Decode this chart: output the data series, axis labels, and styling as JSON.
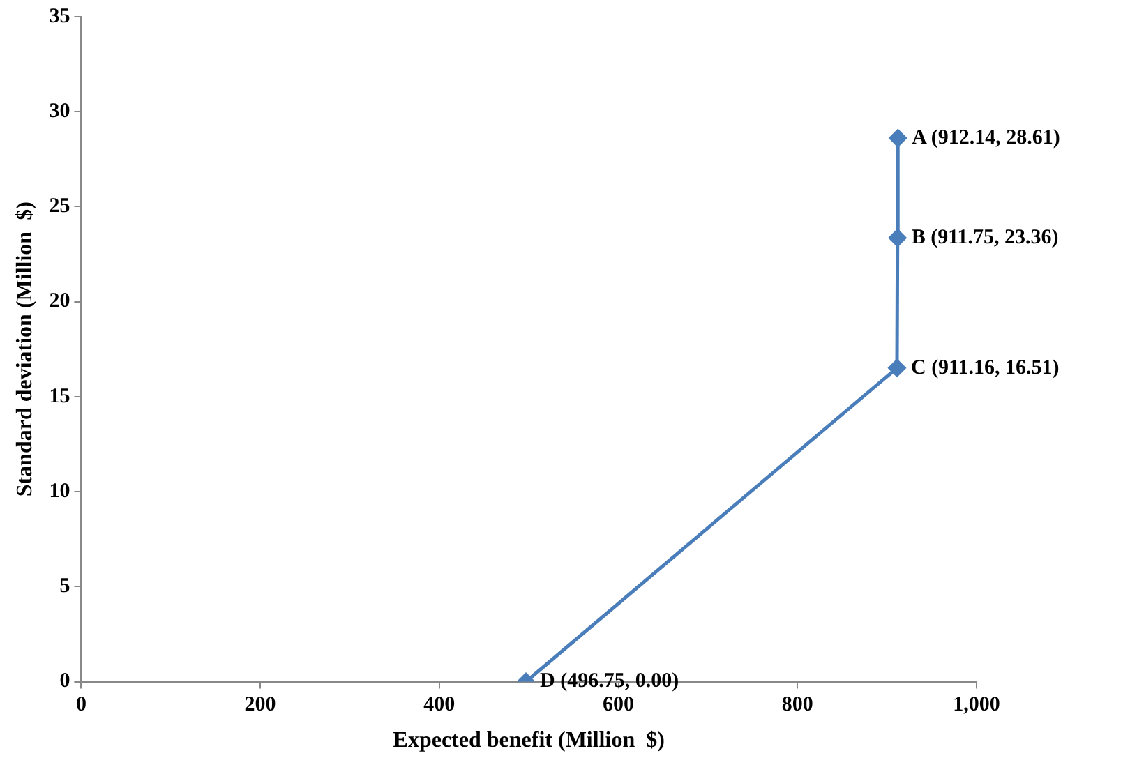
{
  "chart_data": {
    "type": "line",
    "xlabel": "Expected benefit (Million  $)",
    "ylabel": "Standard deviation (Million  $)",
    "x": [
      496.75,
      911.16,
      911.75,
      912.14
    ],
    "values": [
      0,
      16.51,
      23.36,
      28.61
    ],
    "color": "#4a7ebb",
    "marker": "diamond",
    "line_style": "solid",
    "grid": false,
    "legend": false,
    "xlim": [
      0,
      1000
    ],
    "xticks": [
      0,
      200,
      400,
      600,
      800,
      {
        "value": 1000,
        "label": "1,000"
      }
    ],
    "ylim": [
      0,
      35
    ],
    "yticks": [
      0,
      5,
      10,
      15,
      20,
      25,
      30,
      35
    ],
    "annotations": [
      {
        "text": "A (912.14, 28.61)",
        "x": 912.14,
        "y": 28.61
      },
      {
        "text": "B (911.75, 23.36)",
        "x": 911.75,
        "y": 23.36
      },
      {
        "text": "C (911.16, 16.51)",
        "x": 911.16,
        "y": 16.51
      },
      {
        "text": "D (496.75, 0.00)",
        "x": 496.75,
        "y": 0
      }
    ]
  }
}
